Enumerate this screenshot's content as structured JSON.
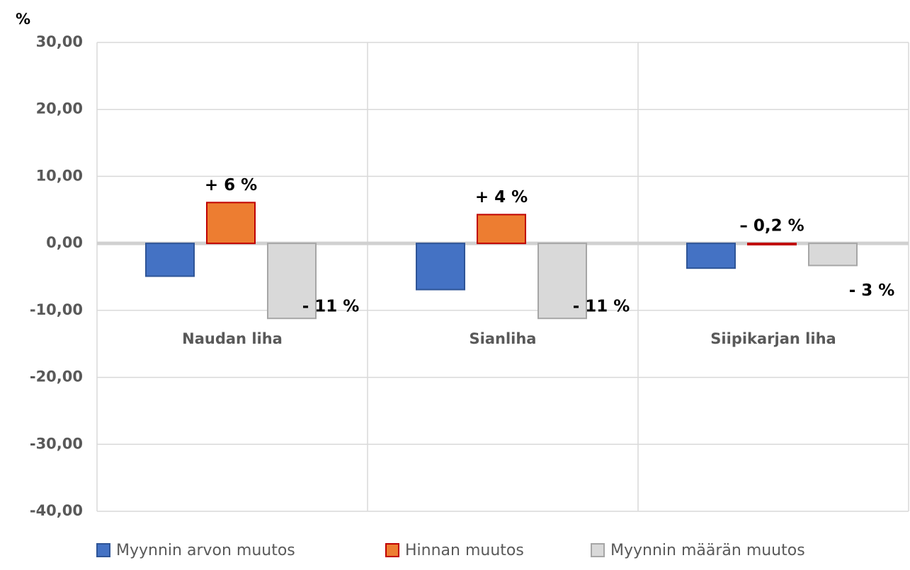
{
  "chart_data": {
    "type": "bar",
    "y_axis_label": "%",
    "categories": [
      "Naudan liha",
      "Sianliha",
      "Siipikarjan liha"
    ],
    "series": [
      {
        "name": "Myynnin arvon muutos",
        "color": "#4472c4",
        "border": "#2f5597",
        "values": [
          -4.9,
          -6.9,
          -3.7
        ]
      },
      {
        "name": "Hinnan muutos",
        "color": "#ed7d31",
        "border": "#c00000",
        "values": [
          6.1,
          4.3,
          -0.2
        ],
        "value_labels": [
          "+ 6 %",
          "+ 4 %",
          "– 0,2 %"
        ]
      },
      {
        "name": "Myynnin määrän muutos",
        "color": "#d9d9d9",
        "border": "#a6a6a6",
        "values": [
          -11.2,
          -11.2,
          -3.3
        ],
        "value_labels": [
          "- 11 %",
          "- 11 %",
          "- 3 %"
        ]
      }
    ],
    "ylim": [
      -40,
      30
    ],
    "yticks": [
      {
        "value": -40,
        "label": "-40,00"
      },
      {
        "value": -30,
        "label": "-30,00"
      },
      {
        "value": -20,
        "label": "-20,00"
      },
      {
        "value": -10,
        "label": "-10,00"
      },
      {
        "value": 0,
        "label": "0,00"
      },
      {
        "value": 10,
        "label": "10,00"
      },
      {
        "value": 20,
        "label": "20,00"
      },
      {
        "value": 30,
        "label": "30,00"
      }
    ],
    "grid": true,
    "legend": "bottom"
  }
}
